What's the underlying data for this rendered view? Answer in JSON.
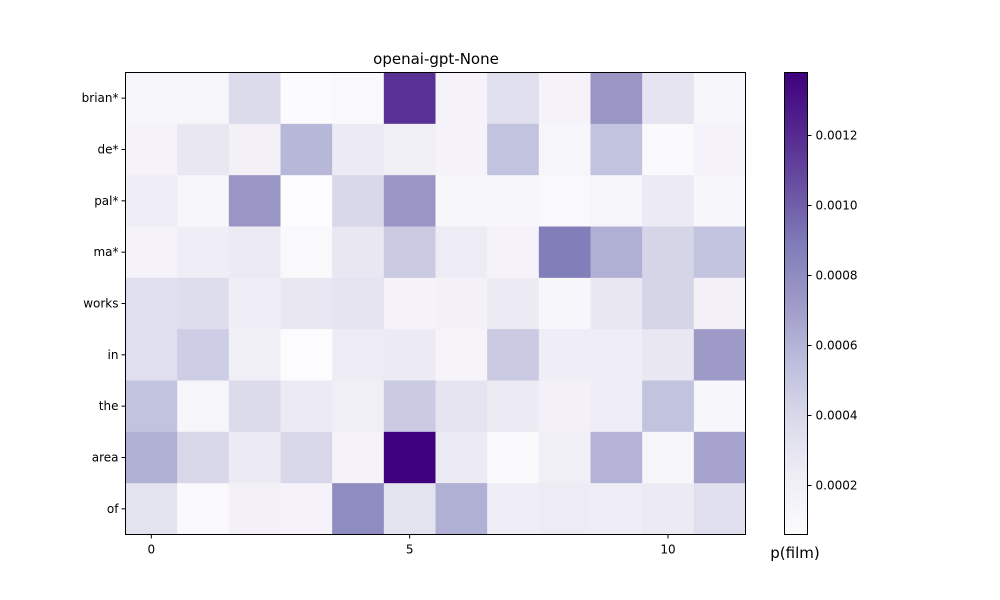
{
  "chart_data": {
    "type": "heatmap",
    "title": "openai-gpt-None",
    "rows": [
      "brian*",
      "de*",
      "pal*",
      "ma*",
      "works",
      "in",
      "the",
      "area",
      "of"
    ],
    "x_ticks": [
      0,
      5,
      10
    ],
    "n_cols": 12,
    "values": [
      [
        0.00013,
        0.00013,
        0.00038,
        7e-05,
        0.0001,
        0.00118,
        0.00015,
        0.00035,
        0.00015,
        0.00075,
        0.0003,
        0.00013
      ],
      [
        0.00015,
        0.00028,
        0.00018,
        0.00058,
        0.00025,
        0.0002,
        0.00015,
        0.00052,
        0.00013,
        0.00052,
        0.0001,
        0.00015
      ],
      [
        0.00022,
        0.00012,
        0.00075,
        6e-05,
        0.0004,
        0.00075,
        0.00012,
        0.00012,
        0.0001,
        0.00013,
        0.00025,
        0.00012
      ],
      [
        0.00015,
        0.00022,
        0.00025,
        0.0001,
        0.00028,
        0.00048,
        0.00024,
        0.00015,
        0.00088,
        0.00062,
        0.00042,
        0.00052
      ],
      [
        0.00035,
        0.00036,
        0.00022,
        0.00028,
        0.0003,
        0.00015,
        0.00018,
        0.00025,
        0.00012,
        0.00028,
        0.00042,
        0.00018
      ],
      [
        0.00035,
        0.00046,
        0.0002,
        6e-05,
        0.00024,
        0.00025,
        0.00014,
        0.00048,
        0.00022,
        0.00022,
        0.00028,
        0.00072
      ],
      [
        0.00052,
        0.00013,
        0.00038,
        0.00025,
        0.0002,
        0.00048,
        0.0003,
        0.00025,
        0.00018,
        0.00022,
        0.00052,
        0.00012
      ],
      [
        0.00062,
        0.0004,
        0.00025,
        0.0004,
        0.00015,
        0.00138,
        0.00025,
        0.0001,
        0.0002,
        0.0006,
        0.00013,
        0.00068
      ],
      [
        0.00032,
        0.0001,
        0.00018,
        0.00015,
        0.0008,
        0.00032,
        0.00062,
        0.00022,
        0.00024,
        0.00022,
        0.00025,
        0.00035
      ]
    ],
    "vmin": 6e-05,
    "vmax": 0.00138,
    "colormap": "Purples",
    "colorbar_label": "p(film)",
    "colorbar_ticks": [
      "0.0002",
      "0.0004",
      "0.0006",
      "0.0008",
      "0.0010",
      "0.0012"
    ],
    "colorbar_tick_values": [
      0.0002,
      0.0004,
      0.0006,
      0.0008,
      0.001,
      0.0012
    ]
  }
}
